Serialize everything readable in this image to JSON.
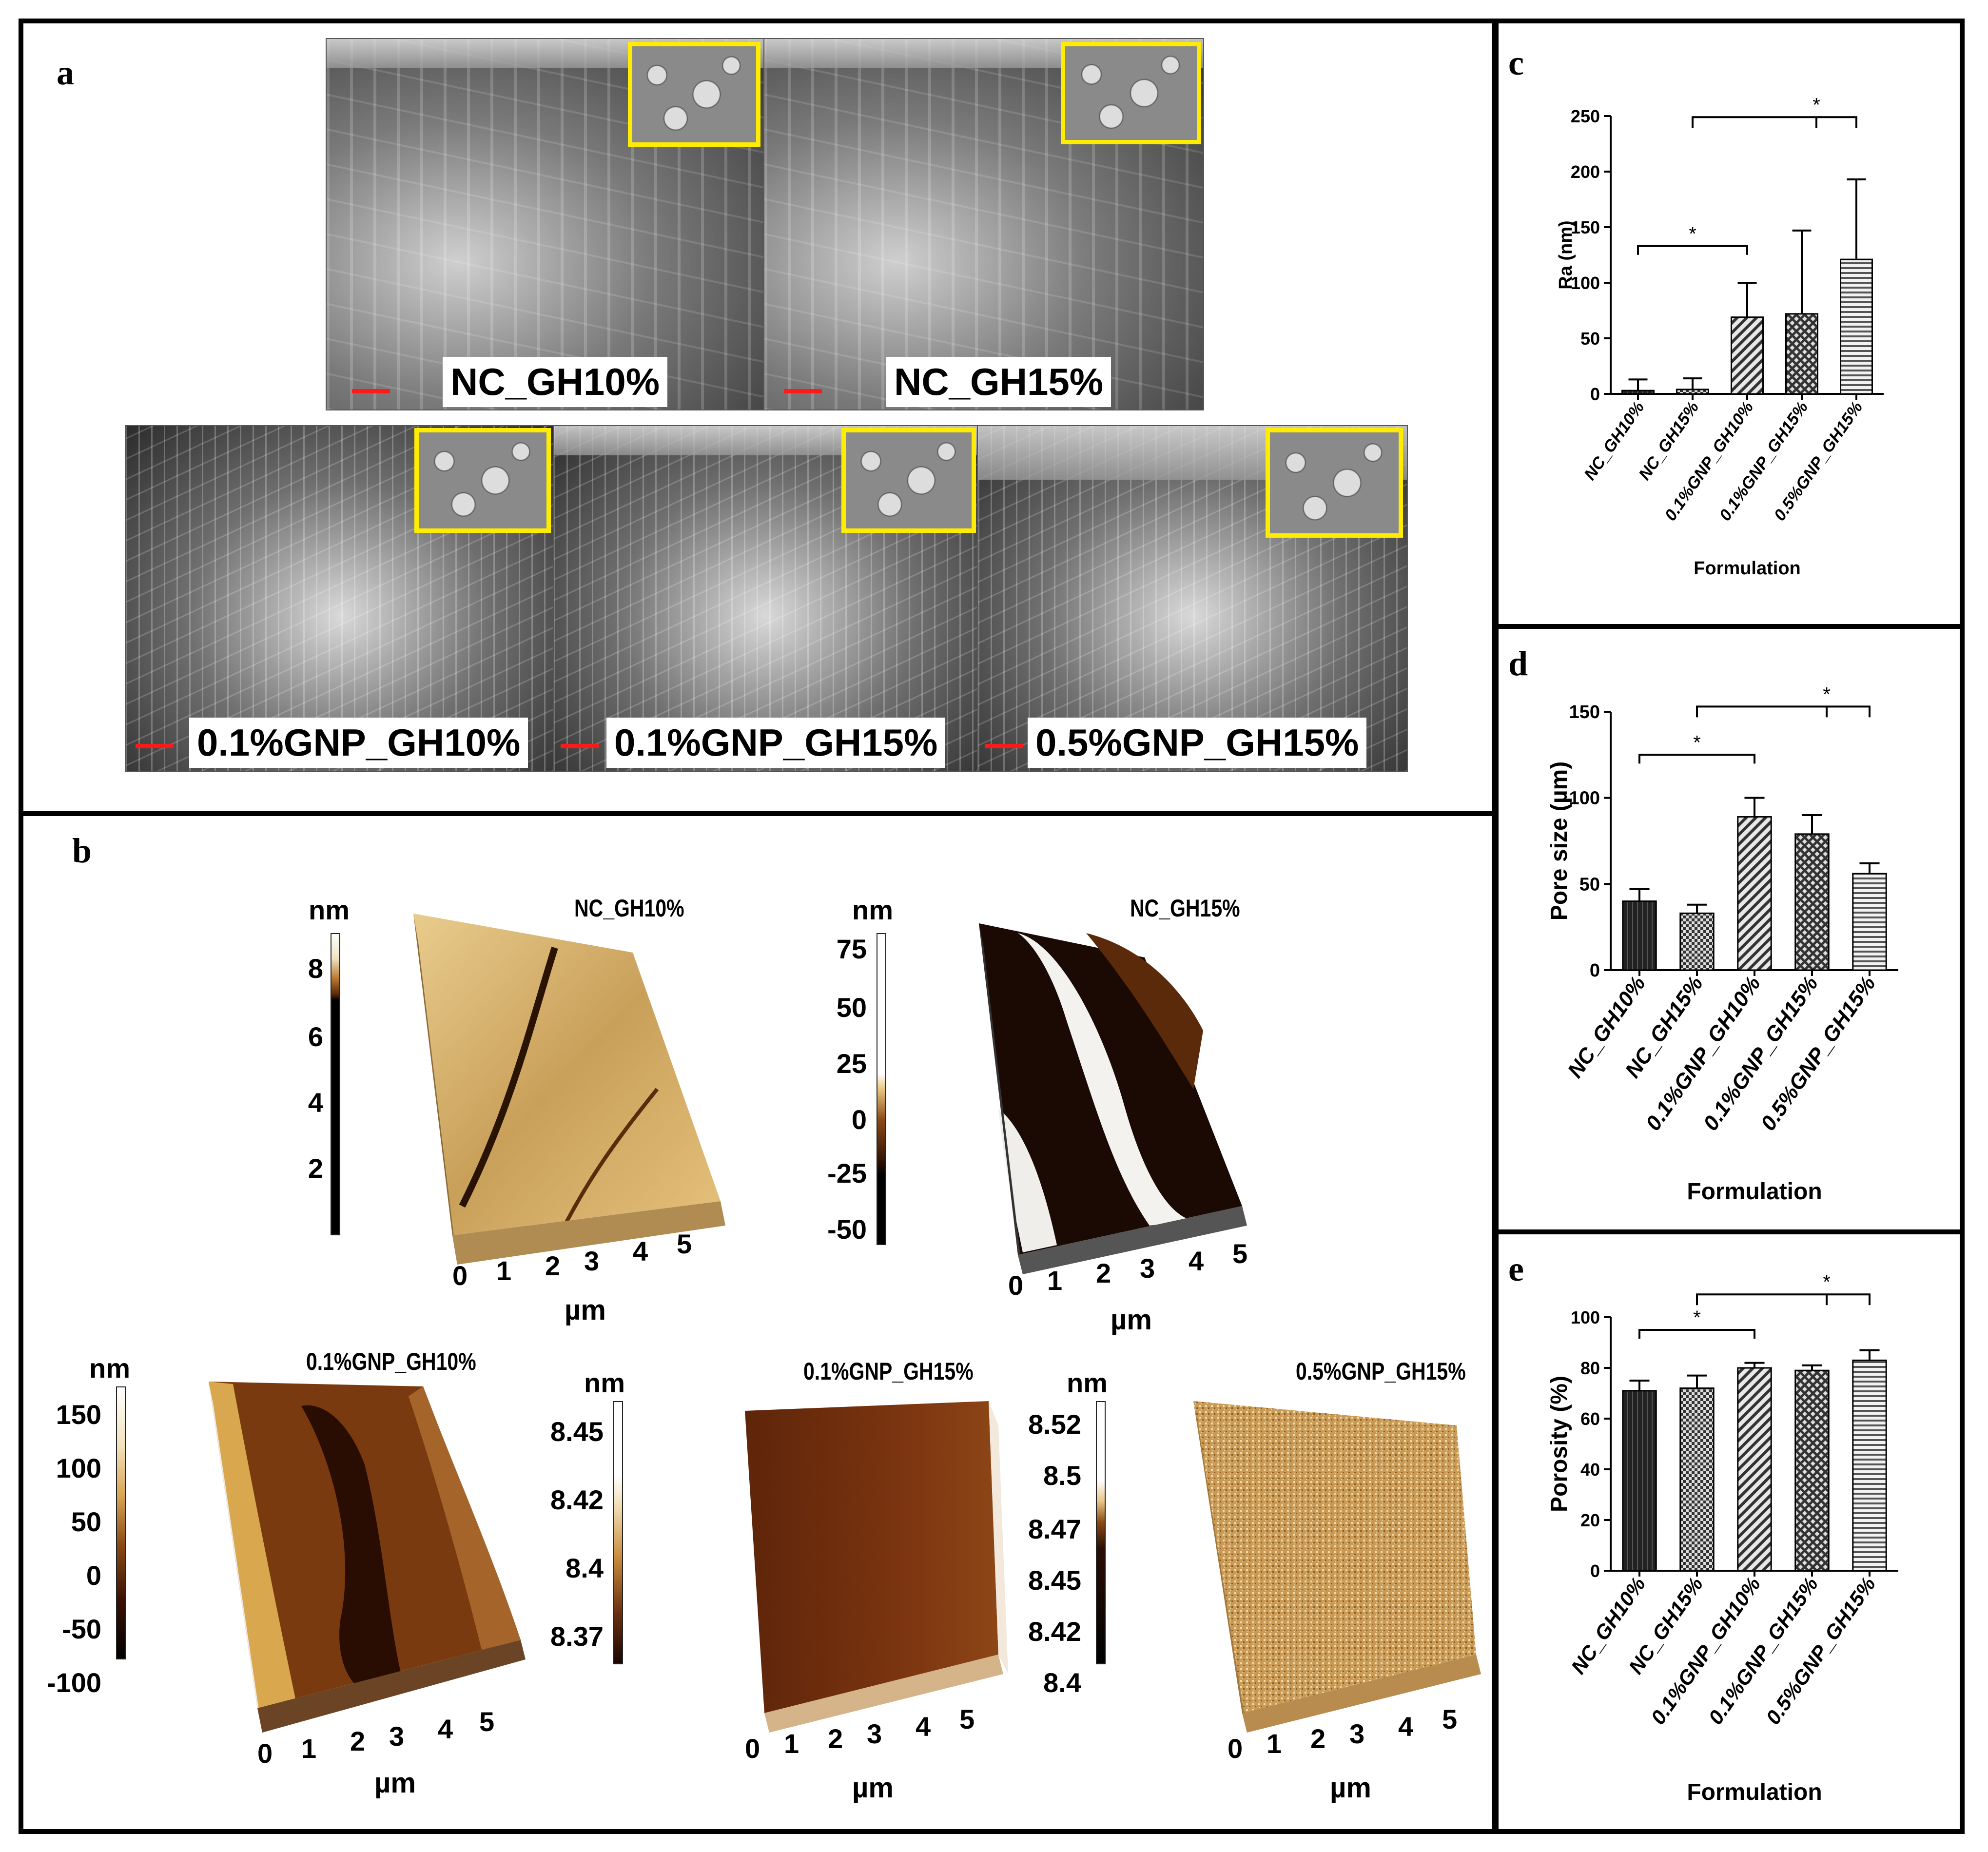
{
  "panels": {
    "a": {
      "letter": "a"
    },
    "b": {
      "letter": "b"
    },
    "c": {
      "letter": "c"
    },
    "d": {
      "letter": "d"
    },
    "e": {
      "letter": "e"
    }
  },
  "sem": [
    {
      "label": "NC_GH10%"
    },
    {
      "label": "NC_GH15%"
    },
    {
      "label": "0.1%GNP_GH10%"
    },
    {
      "label": "0.1%GNP_GH15%"
    },
    {
      "label": "0.5%GNP_GH15%"
    }
  ],
  "afm": [
    {
      "title": "NC_GH10%",
      "unit": "nm",
      "ticks": [
        "8",
        "6",
        "4",
        "2"
      ],
      "axis": [
        "0",
        "1",
        "2",
        "3",
        "4",
        "5"
      ],
      "axis_unit": "µm"
    },
    {
      "title": "NC_GH15%",
      "unit": "nm",
      "ticks": [
        "75",
        "50",
        "25",
        "0",
        "-25",
        "-50"
      ],
      "axis": [
        "0",
        "1",
        "2",
        "3",
        "4",
        "5"
      ],
      "axis_unit": "µm"
    },
    {
      "title": "0.1%GNP_GH10%",
      "unit": "nm",
      "ticks": [
        "150",
        "100",
        "50",
        "0",
        "-50",
        "-100"
      ],
      "axis": [
        "0",
        "1",
        "2",
        "3",
        "4",
        "5"
      ],
      "axis_unit": "µm"
    },
    {
      "title": "0.1%GNP_GH15%",
      "unit": "nm",
      "ticks": [
        "8.45",
        "8.42",
        "8.4",
        "8.37"
      ],
      "axis": [
        "0",
        "1",
        "2",
        "3",
        "4",
        "5"
      ],
      "axis_unit": "µm"
    },
    {
      "title": "0.5%GNP_GH15%",
      "unit": "nm",
      "ticks": [
        "8.52",
        "8.5",
        "8.47",
        "8.45",
        "8.42",
        "8.4"
      ],
      "axis": [
        "0",
        "1",
        "2",
        "3",
        "4",
        "5"
      ],
      "axis_unit": "µm"
    }
  ],
  "chart_data": [
    {
      "id": "c",
      "type": "bar",
      "categories": [
        "NC_GH10%",
        "NC_GH15%",
        "0.1%GNP_GH10%",
        "0.1%GNP_GH15%",
        "0.5%GNP_GH15%"
      ],
      "values": [
        3,
        4,
        69,
        72,
        121
      ],
      "errors": [
        10,
        10,
        31,
        75,
        72
      ],
      "xlabel": "Formulation",
      "ylabel": "Ra (nm)",
      "ylim": [
        0,
        250
      ],
      "yticks": [
        "0",
        "50",
        "100",
        "150",
        "200",
        "250"
      ],
      "significance": "*"
    },
    {
      "id": "d",
      "type": "bar",
      "categories": [
        "NC_GH10%",
        "NC_GH15%",
        "0.1%GNP_GH10%",
        "0.1%GNP_GH15%",
        "0.5%GNP_GH15%"
      ],
      "values": [
        40,
        33,
        89,
        79,
        56
      ],
      "errors": [
        7,
        5,
        11,
        11,
        6
      ],
      "xlabel": "Formulation",
      "ylabel": "Pore size (µm)",
      "ylim": [
        0,
        150
      ],
      "yticks": [
        "0",
        "50",
        "100",
        "150"
      ],
      "significance": "*"
    },
    {
      "id": "e",
      "type": "bar",
      "categories": [
        "NC_GH10%",
        "NC_GH15%",
        "0.1%GNP_GH10%",
        "0.1%GNP_GH15%",
        "0.5%GNP_GH15%"
      ],
      "values": [
        71,
        72,
        80,
        79,
        83
      ],
      "errors": [
        4,
        5,
        2,
        2,
        4
      ],
      "xlabel": "Formulation",
      "ylabel": "Porosity (%)",
      "ylim": [
        0,
        100
      ],
      "yticks": [
        "0",
        "20",
        "40",
        "60",
        "80",
        "100"
      ],
      "significance": "*"
    }
  ]
}
